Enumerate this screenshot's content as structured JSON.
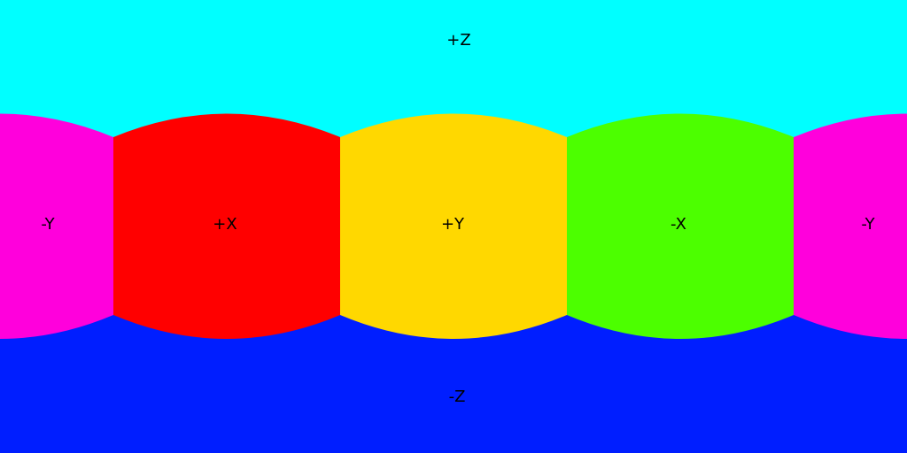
{
  "faces": {
    "pos_z": {
      "label": "+Z",
      "color": "#00FFFF"
    },
    "neg_z": {
      "label": "-Z",
      "color": "#001EFF"
    },
    "pos_x": {
      "label": "+X",
      "color": "#FF0000"
    },
    "pos_y": {
      "label": "+Y",
      "color": "#FFD800"
    },
    "neg_x": {
      "label": "-X",
      "color": "#4CFF00"
    },
    "neg_y": {
      "label": "-Y",
      "color": "#FF00DC"
    }
  }
}
